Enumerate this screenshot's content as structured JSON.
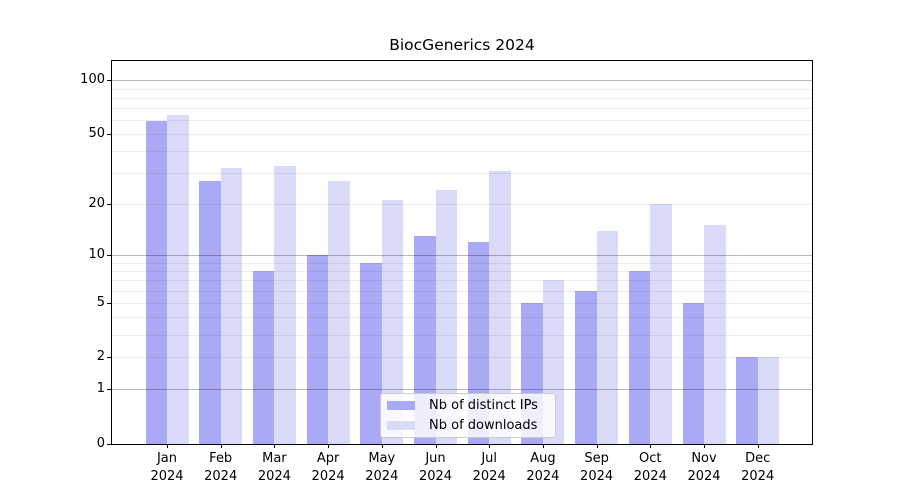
{
  "chart_data": {
    "type": "bar",
    "title": "BiocGenerics 2024",
    "x_tick_year": "2024",
    "categories": [
      "Jan",
      "Feb",
      "Mar",
      "Apr",
      "May",
      "Jun",
      "Jul",
      "Aug",
      "Sep",
      "Oct",
      "Nov",
      "Dec"
    ],
    "series": [
      {
        "name": "Nb of distinct IPs",
        "color": "#a9a9f5",
        "values": [
          59,
          27,
          8,
          10,
          9,
          13,
          12,
          5,
          6,
          8,
          5,
          2
        ]
      },
      {
        "name": "Nb of downloads",
        "color": "#dadaf9",
        "values": [
          64,
          32,
          33,
          27,
          21,
          24,
          31,
          7,
          14,
          20,
          15,
          2
        ]
      }
    ],
    "yscale": "log1p",
    "yticks": [
      0,
      1,
      2,
      5,
      10,
      20,
      50,
      100
    ],
    "ylim": [
      0,
      128
    ],
    "grid": {
      "major_at": [
        1,
        10,
        100
      ],
      "minor_at": [
        2,
        3,
        4,
        5,
        6,
        7,
        8,
        9,
        20,
        30,
        40,
        50,
        60,
        70,
        80,
        90
      ],
      "major_color": "rgba(0,0,0,0.28)",
      "minor_color": "rgba(0,0,0,0.07)"
    },
    "legend_position": "lower center"
  },
  "colors": {
    "background": "#ffffff",
    "spine": "#000000",
    "text": "#000000"
  }
}
